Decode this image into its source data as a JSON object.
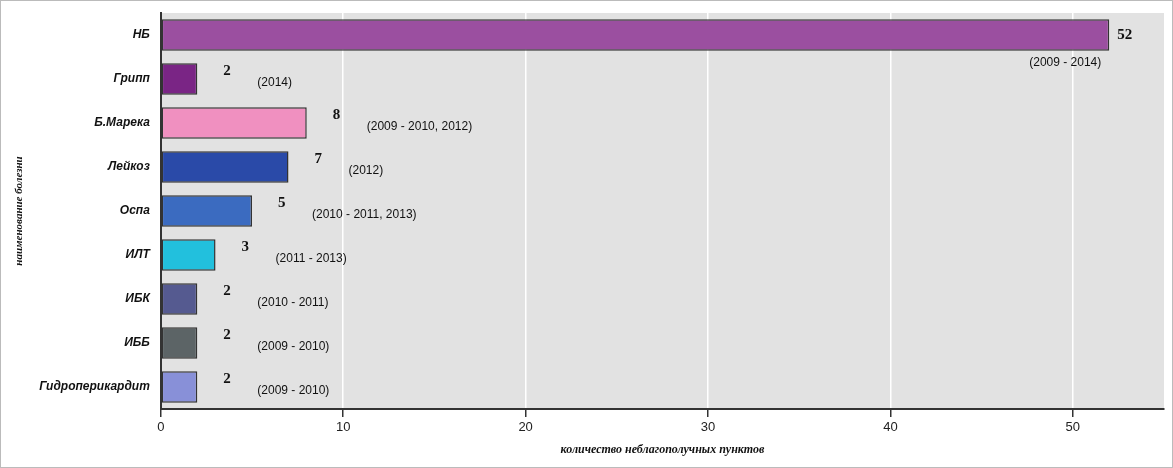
{
  "chart_data": {
    "type": "bar",
    "orientation": "horizontal",
    "categories": [
      "НБ",
      "Грипп",
      "Б.Марека",
      "Лейкоз",
      "Оспа",
      "ИЛТ",
      "ИБК",
      "ИББ",
      "Гидроперикардит"
    ],
    "values": [
      52,
      2,
      8,
      7,
      5,
      3,
      2,
      2,
      2
    ],
    "colors": [
      "#9b4fa0",
      "#7a2585",
      "#f090c0",
      "#2a4aa8",
      "#3b6bc0",
      "#22c0dd",
      "#555a90",
      "#5c6466",
      "#8890d8"
    ],
    "xlim": [
      0,
      55
    ],
    "xticks": [
      0,
      10,
      20,
      30,
      40,
      50
    ],
    "xlabel": "количество неблагополучных пунктов",
    "ylabel": "наименование болезни",
    "grid": "x",
    "legend": false,
    "data_labels": true,
    "annotations": [
      "(2009 - 2014)",
      "(2014)",
      "(2009 - 2010, 2012)",
      "(2012)",
      "(2010 - 2011, 2013)",
      "(2011 - 2013)",
      "(2010 - 2011)",
      "(2009 - 2010)",
      "(2009 - 2010)"
    ]
  }
}
